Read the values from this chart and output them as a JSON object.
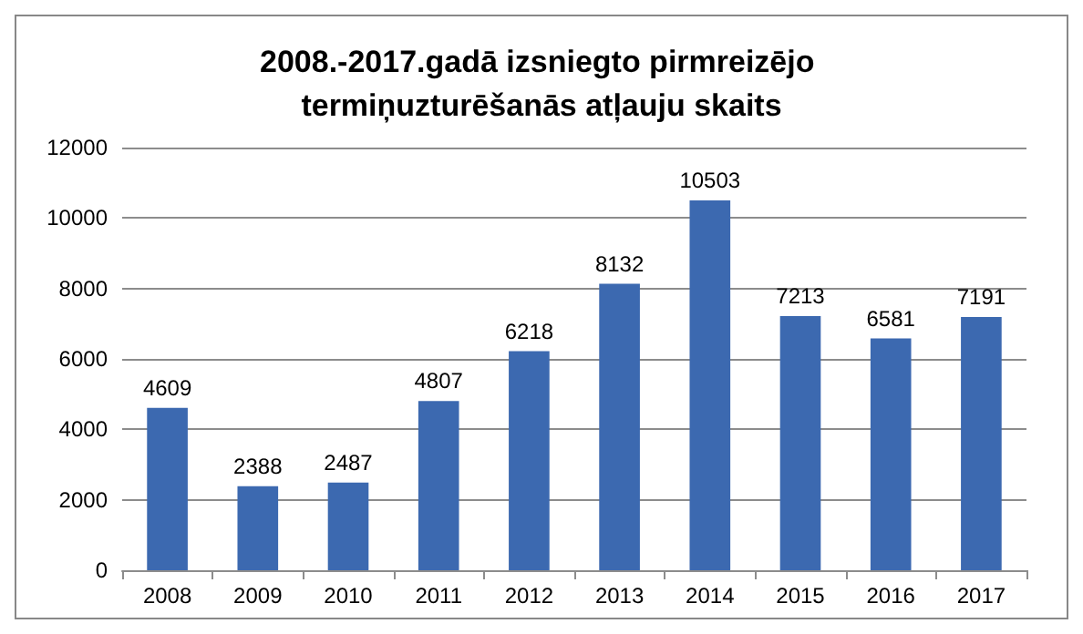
{
  "chart_data": {
    "type": "bar",
    "title": "2008.-2017.gadā izsniegto pirmreizējo termiņuzturēšanās atļauju skaits",
    "categories": [
      "2008",
      "2009",
      "2010",
      "2011",
      "2012",
      "2013",
      "2014",
      "2015",
      "2016",
      "2017"
    ],
    "values": [
      4609,
      2388,
      2487,
      4807,
      6218,
      8132,
      10503,
      7213,
      6581,
      7191
    ],
    "color": "#3c69b0",
    "ylim": [
      0,
      12000
    ],
    "yticks": [
      0,
      2000,
      4000,
      6000,
      8000,
      10000,
      12000
    ],
    "grid": "y",
    "data_labels": true
  }
}
